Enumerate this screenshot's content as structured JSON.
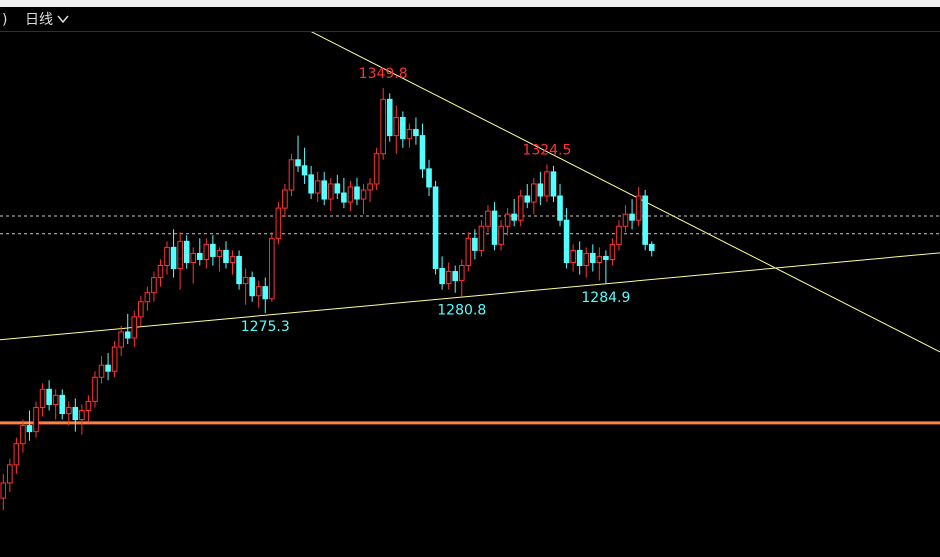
{
  "toolbar": {
    "left_fragment": ")",
    "period": "日线"
  },
  "chart_data": {
    "type": "candlestick",
    "up_color": "#ff3232",
    "down_color": "#54ffff",
    "ylim": [
      1194.5,
      1368.3
    ],
    "candles": [
      [
        1214,
        1222,
        1210,
        1219
      ],
      [
        1219,
        1227,
        1216,
        1225
      ],
      [
        1225,
        1234,
        1222,
        1232
      ],
      [
        1232,
        1240,
        1229,
        1238
      ],
      [
        1238,
        1243,
        1233,
        1236
      ],
      [
        1236,
        1246,
        1234,
        1244
      ],
      [
        1244,
        1252,
        1241,
        1250
      ],
      [
        1250,
        1253,
        1243,
        1245
      ],
      [
        1245,
        1250,
        1240,
        1248
      ],
      [
        1248,
        1250,
        1240,
        1242
      ],
      [
        1242,
        1246,
        1238,
        1244
      ],
      [
        1244,
        1247,
        1236,
        1240
      ],
      [
        1240,
        1245,
        1235,
        1243
      ],
      [
        1243,
        1248,
        1239,
        1246
      ],
      [
        1246,
        1256,
        1244,
        1254
      ],
      [
        1254,
        1261,
        1252,
        1258
      ],
      [
        1258,
        1262,
        1253,
        1256
      ],
      [
        1256,
        1266,
        1254,
        1264
      ],
      [
        1264,
        1271,
        1261,
        1269
      ],
      [
        1269,
        1275,
        1265,
        1267
      ],
      [
        1267,
        1276,
        1264,
        1274
      ],
      [
        1274,
        1281,
        1271,
        1279
      ],
      [
        1279,
        1284,
        1276,
        1282
      ],
      [
        1282,
        1289,
        1279,
        1287
      ],
      [
        1287,
        1293,
        1284,
        1291
      ],
      [
        1291,
        1299,
        1288,
        1297
      ],
      [
        1297,
        1303,
        1287,
        1290
      ],
      [
        1290,
        1302,
        1283,
        1299
      ],
      [
        1299,
        1301,
        1290,
        1292
      ],
      [
        1292,
        1297,
        1285,
        1295
      ],
      [
        1295,
        1300,
        1291,
        1293
      ],
      [
        1293,
        1300,
        1290,
        1298
      ],
      [
        1298,
        1301,
        1291,
        1294
      ],
      [
        1294,
        1297,
        1289,
        1296
      ],
      [
        1296,
        1299,
        1290,
        1292
      ],
      [
        1292,
        1296,
        1288,
        1294
      ],
      [
        1294,
        1296,
        1283,
        1285
      ],
      [
        1285,
        1290,
        1278,
        1287
      ],
      [
        1287,
        1289,
        1279,
        1281
      ],
      [
        1281,
        1286,
        1277,
        1284
      ],
      [
        1284,
        1287,
        1275.3,
        1280
      ],
      [
        1280,
        1302,
        1279,
        1300
      ],
      [
        1300,
        1312,
        1298,
        1310
      ],
      [
        1310,
        1318,
        1307,
        1316
      ],
      [
        1316,
        1328,
        1314,
        1326
      ],
      [
        1326,
        1334,
        1322,
        1324
      ],
      [
        1324,
        1330,
        1318,
        1321
      ],
      [
        1321,
        1324,
        1313,
        1315
      ],
      [
        1315,
        1322,
        1312,
        1319
      ],
      [
        1319,
        1322,
        1311,
        1313
      ],
      [
        1313,
        1320,
        1309,
        1318
      ],
      [
        1318,
        1321,
        1313,
        1315
      ],
      [
        1315,
        1320,
        1310,
        1312
      ],
      [
        1312,
        1319,
        1309,
        1317
      ],
      [
        1317,
        1320,
        1311,
        1313
      ],
      [
        1313,
        1318,
        1308,
        1316
      ],
      [
        1316,
        1320,
        1312,
        1318
      ],
      [
        1318,
        1330,
        1316,
        1328
      ],
      [
        1328,
        1349.8,
        1326,
        1346
      ],
      [
        1346,
        1348,
        1332,
        1334
      ],
      [
        1334,
        1344,
        1328,
        1340
      ],
      [
        1340,
        1342,
        1330,
        1333
      ],
      [
        1333,
        1338,
        1330,
        1336
      ],
      [
        1336,
        1340,
        1331,
        1334
      ],
      [
        1334,
        1338,
        1320,
        1323
      ],
      [
        1323,
        1326,
        1314,
        1317
      ],
      [
        1317,
        1319,
        1288,
        1290
      ],
      [
        1290,
        1294,
        1283,
        1285
      ],
      [
        1285,
        1292,
        1283,
        1289
      ],
      [
        1289,
        1291,
        1282,
        1286
      ],
      [
        1286,
        1293,
        1280.8,
        1291
      ],
      [
        1291,
        1302,
        1289,
        1300
      ],
      [
        1300,
        1303,
        1293,
        1296
      ],
      [
        1296,
        1306,
        1294,
        1304
      ],
      [
        1304,
        1311,
        1302,
        1309
      ],
      [
        1309,
        1312,
        1296,
        1298
      ],
      [
        1298,
        1306,
        1296,
        1304
      ],
      [
        1304,
        1310,
        1301,
        1308
      ],
      [
        1308,
        1313,
        1304,
        1306
      ],
      [
        1306,
        1316,
        1304,
        1314
      ],
      [
        1314,
        1318,
        1310,
        1312
      ],
      [
        1312,
        1320,
        1308,
        1318
      ],
      [
        1318,
        1322,
        1311,
        1314
      ],
      [
        1314,
        1324.5,
        1312,
        1322
      ],
      [
        1322,
        1324,
        1312,
        1314
      ],
      [
        1314,
        1318,
        1304,
        1306
      ],
      [
        1306,
        1310,
        1290,
        1292
      ],
      [
        1292,
        1298,
        1289,
        1296
      ],
      [
        1296,
        1299,
        1288,
        1291
      ],
      [
        1291,
        1297,
        1287,
        1295
      ],
      [
        1295,
        1298,
        1289,
        1292
      ],
      [
        1292,
        1297,
        1286,
        1294
      ],
      [
        1294,
        1296,
        1284.9,
        1293
      ],
      [
        1293,
        1300,
        1291,
        1298
      ],
      [
        1298,
        1306,
        1296,
        1304
      ],
      [
        1304,
        1311,
        1302,
        1308
      ],
      [
        1308,
        1313,
        1303,
        1306
      ],
      [
        1306,
        1317,
        1304,
        1314
      ],
      [
        1314,
        1316,
        1296,
        1298
      ],
      [
        1298,
        1299,
        1294,
        1296
      ]
    ],
    "annotations": [
      {
        "value": 1349.8,
        "color": "#ff3232"
      },
      {
        "value": 1324.5,
        "color": "#ff3232"
      },
      {
        "value": 1275.3,
        "color": "#54ffff"
      },
      {
        "value": 1280.8,
        "color": "#54ffff"
      },
      {
        "value": 1284.9,
        "color": "#54ffff"
      }
    ],
    "levels": [
      {
        "value": 1238.9,
        "color": "#ff8040",
        "style": "solid"
      },
      {
        "value": 1307.4,
        "color": "#c8c8c8",
        "style": "dashed"
      },
      {
        "value": 1301.5,
        "color": "#c8c8c8",
        "style": "dashed"
      }
    ],
    "trend_lines": [
      {
        "left": 1420.9,
        "right": 1262.4,
        "color": "#ffff99"
      },
      {
        "left": 1266.4,
        "right": 1295.2,
        "color": "#ffff99"
      }
    ]
  }
}
